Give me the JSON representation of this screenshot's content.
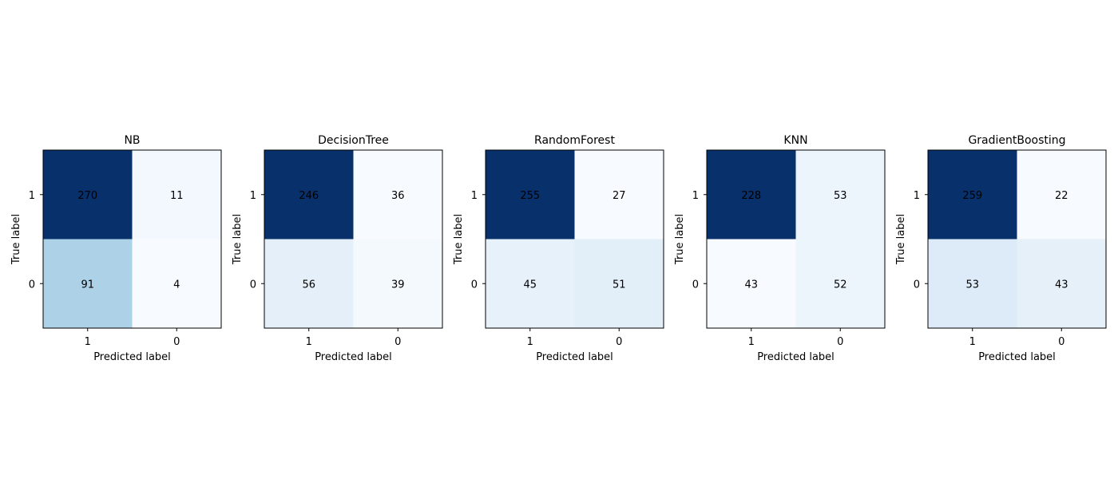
{
  "chart_data": [
    {
      "type": "heatmap",
      "title": "NB",
      "xlabel": "Predicted label",
      "ylabel": "True label",
      "x_ticks": [
        "1",
        "0"
      ],
      "y_ticks": [
        "1",
        "0"
      ],
      "colormap": "Blues",
      "matrix": [
        [
          270,
          11
        ],
        [
          91,
          4
        ]
      ],
      "grid": false
    },
    {
      "type": "heatmap",
      "title": "DecisionTree",
      "xlabel": "Predicted label",
      "ylabel": "True label",
      "x_ticks": [
        "1",
        "0"
      ],
      "y_ticks": [
        "1",
        "0"
      ],
      "colormap": "Blues",
      "matrix": [
        [
          246,
          36
        ],
        [
          56,
          39
        ]
      ],
      "grid": false
    },
    {
      "type": "heatmap",
      "title": "RandomForest",
      "xlabel": "Predicted label",
      "ylabel": "True label",
      "x_ticks": [
        "1",
        "0"
      ],
      "y_ticks": [
        "1",
        "0"
      ],
      "colormap": "Blues",
      "matrix": [
        [
          255,
          27
        ],
        [
          45,
          51
        ]
      ],
      "grid": false
    },
    {
      "type": "heatmap",
      "title": "KNN",
      "xlabel": "Predicted label",
      "ylabel": "True label",
      "x_ticks": [
        "1",
        "0"
      ],
      "y_ticks": [
        "1",
        "0"
      ],
      "colormap": "Blues",
      "matrix": [
        [
          228,
          53
        ],
        [
          43,
          52
        ]
      ],
      "grid": false
    },
    {
      "type": "heatmap",
      "title": "GradientBoosting",
      "xlabel": "Predicted label",
      "ylabel": "True label",
      "x_ticks": [
        "1",
        "0"
      ],
      "y_ticks": [
        "1",
        "0"
      ],
      "colormap": "Blues",
      "matrix": [
        [
          259,
          22
        ],
        [
          53,
          43
        ]
      ],
      "grid": false
    }
  ]
}
